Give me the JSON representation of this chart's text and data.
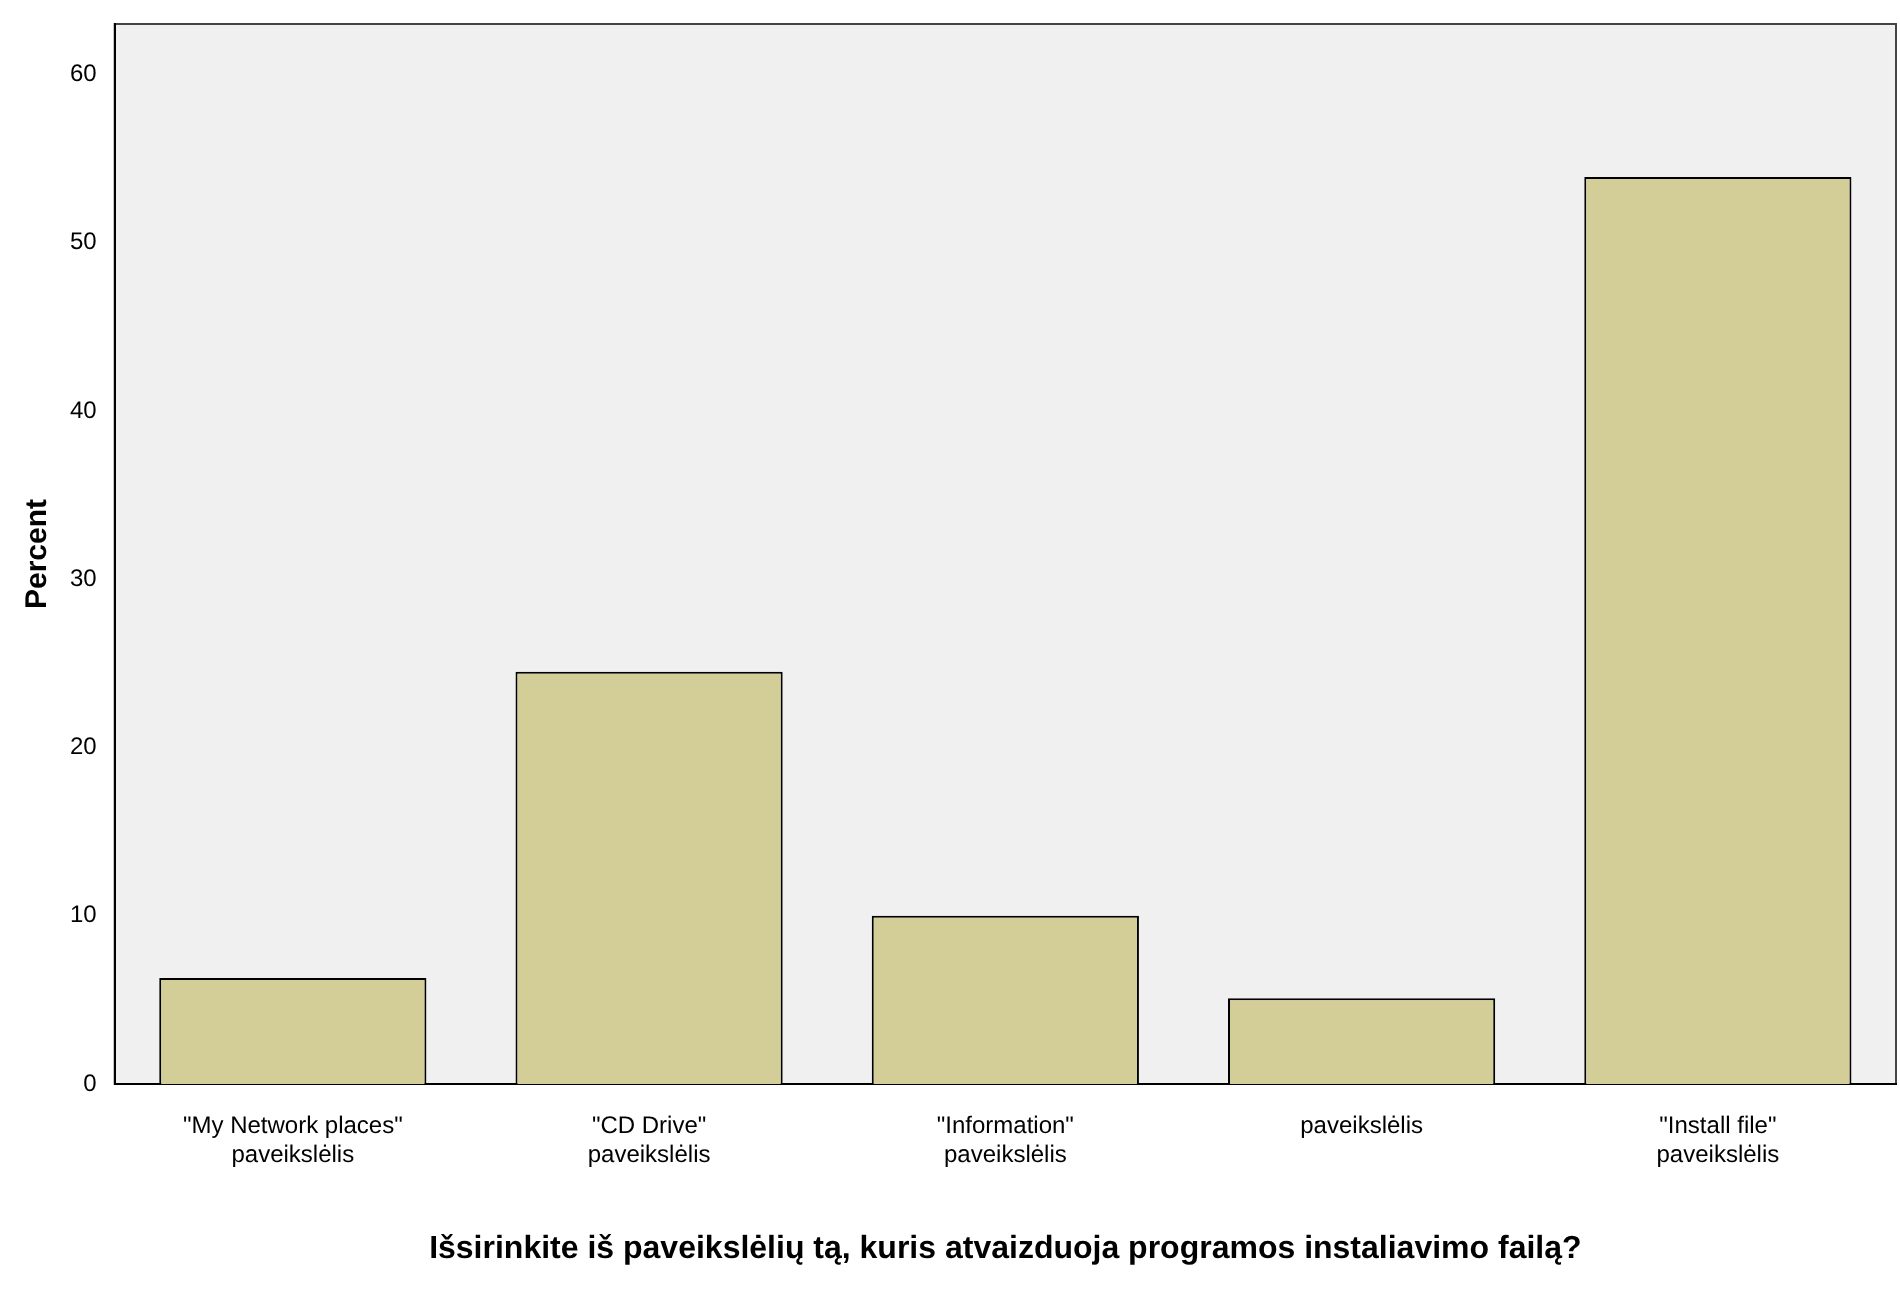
{
  "chart_data": {
    "type": "bar",
    "xlabel": "Išsirinkite iš paveikslėlių tą, kuris atvaizduoja programos instaliavimo failą?",
    "ylabel": "Percent",
    "categories": [
      "\"My Network places\" paveikslėlis",
      "\"CD Drive\" paveikslėlis",
      "\"Information\" paveikslėlis",
      "paveikslėlis",
      "\"Install file\" paveikslėlis"
    ],
    "values": [
      6.3,
      24.5,
      10.0,
      5.1,
      53.9
    ],
    "color": "#d3ce97",
    "ylim": [
      0,
      63
    ],
    "yticks": [
      0,
      10,
      20,
      30,
      40,
      50,
      60
    ],
    "grid": false,
    "legend": false
  }
}
